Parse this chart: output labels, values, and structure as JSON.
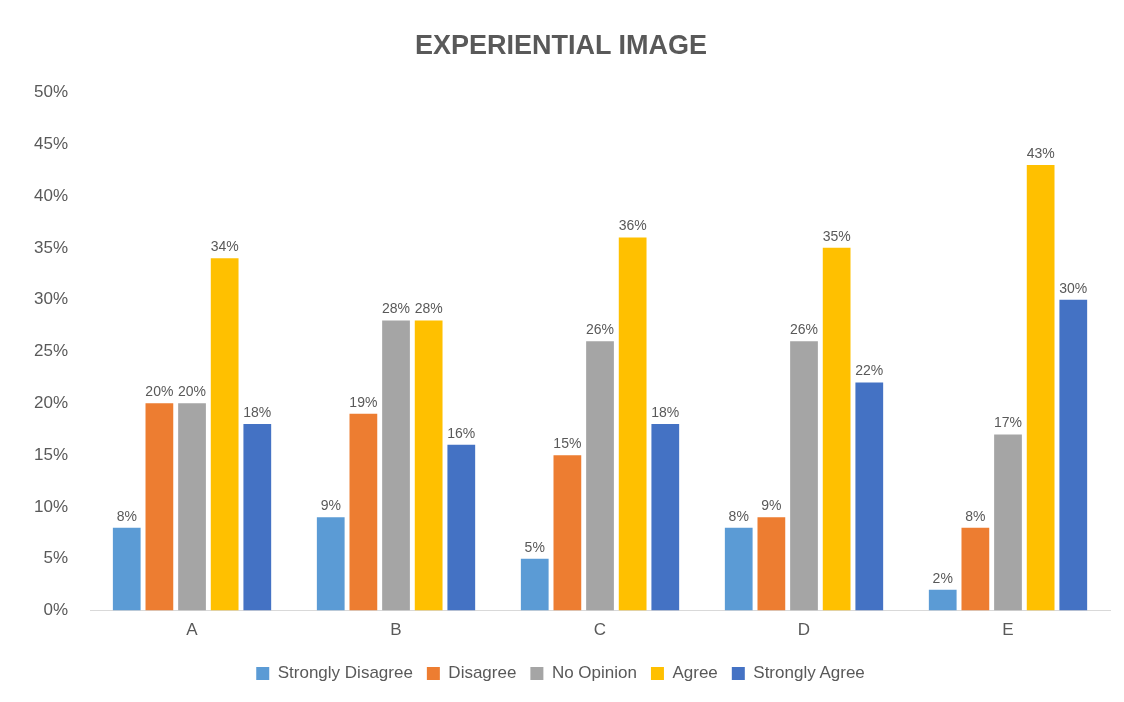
{
  "chart_data": {
    "type": "bar",
    "title": "EXPERIENTIAL IMAGE",
    "categories": [
      "A",
      "B",
      "C",
      "D",
      "E"
    ],
    "series": [
      {
        "name": "Strongly Disagree",
        "color": "#5b9bd5",
        "values": [
          8,
          9,
          5,
          8,
          2
        ],
        "value_labels": [
          "8%",
          "9%",
          "5%",
          "8%",
          "2%"
        ]
      },
      {
        "name": "Disagree",
        "color": "#ed7d31",
        "values": [
          20,
          19,
          15,
          9,
          8
        ],
        "value_labels": [
          "20%",
          "19%",
          "15%",
          "9%",
          "8%"
        ]
      },
      {
        "name": "No Opinion",
        "color": "#a5a5a5",
        "values": [
          20,
          28,
          26,
          26,
          17
        ],
        "value_labels": [
          "20%",
          "28%",
          "26%",
          "26%",
          "17%"
        ]
      },
      {
        "name": "Agree",
        "color": "#ffc000",
        "values": [
          34,
          28,
          36,
          35,
          43
        ],
        "value_labels": [
          "34%",
          "28%",
          "36%",
          "35%",
          "43%"
        ]
      },
      {
        "name": "Strongly Agree",
        "color": "#4472c4",
        "values": [
          18,
          16,
          18,
          22,
          30
        ],
        "value_labels": [
          "18%",
          "16%",
          "18%",
          "22%",
          "30%"
        ]
      }
    ],
    "ylim": [
      0,
      50
    ],
    "yticks": [
      {
        "value": 0,
        "label": "0%"
      },
      {
        "value": 5,
        "label": "5%"
      },
      {
        "value": 10,
        "label": "10%"
      },
      {
        "value": 15,
        "label": "15%"
      },
      {
        "value": 20,
        "label": "20%"
      },
      {
        "value": 25,
        "label": "25%"
      },
      {
        "value": 30,
        "label": "30%"
      },
      {
        "value": 35,
        "label": "35%"
      },
      {
        "value": 40,
        "label": "40%"
      },
      {
        "value": 45,
        "label": "45%"
      },
      {
        "value": 50,
        "label": "50%"
      }
    ],
    "grid": false,
    "legend": "bottom"
  }
}
